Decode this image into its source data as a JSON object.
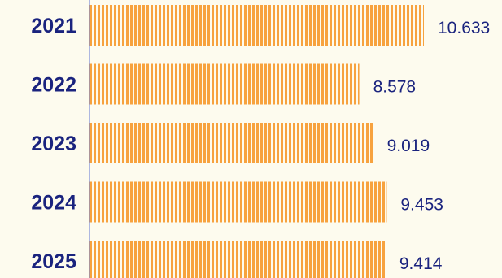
{
  "chart_data": {
    "type": "bar",
    "orientation": "horizontal",
    "categories": [
      "2021",
      "2022",
      "2023",
      "2024",
      "2025"
    ],
    "values": [
      10.633,
      8.578,
      9.019,
      9.453,
      9.414
    ],
    "value_labels": [
      "10.633",
      "8.578",
      "9.019",
      "9.453",
      "9.414"
    ],
    "grid": false,
    "legend": "none"
  },
  "colors": {
    "bar": "#f7a23e",
    "bar_stripe": "#fdfbee",
    "axis": "#7b8ad6",
    "text": "#1a237e",
    "background": "#fdfbee"
  }
}
